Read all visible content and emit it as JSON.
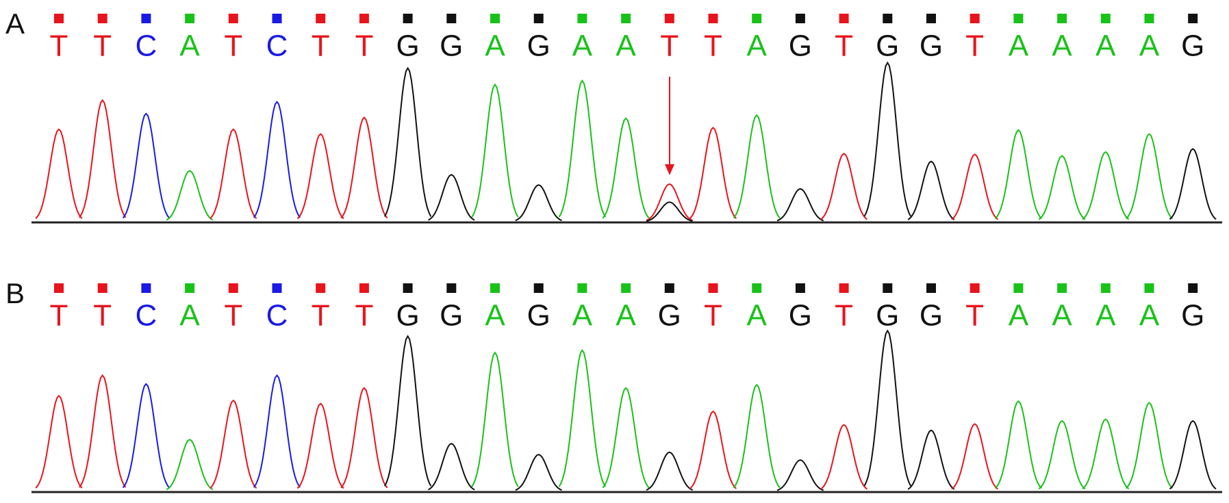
{
  "panels": [
    {
      "label": "A",
      "bases": [
        "T",
        "T",
        "C",
        "A",
        "T",
        "C",
        "T",
        "T",
        "G",
        "G",
        "A",
        "G",
        "A",
        "A",
        "T",
        "T",
        "A",
        "G",
        "T",
        "G",
        "G",
        "T",
        "A",
        "A",
        "A",
        "A",
        "G"
      ],
      "peak_heights": [
        118,
        155,
        138,
        65,
        118,
        153,
        112,
        133,
        196,
        60,
        175,
        47,
        180,
        132,
        48,
        120,
        136,
        42,
        87,
        203,
        77,
        86,
        117,
        84,
        89,
        112,
        93
      ],
      "secondary_peaks": [
        {
          "index": 14,
          "base": "G",
          "height": 25
        }
      ]
    },
    {
      "label": "B",
      "bases": [
        "T",
        "T",
        "C",
        "A",
        "T",
        "C",
        "T",
        "T",
        "G",
        "G",
        "A",
        "G",
        "A",
        "A",
        "G",
        "T",
        "A",
        "G",
        "T",
        "G",
        "G",
        "T",
        "A",
        "A",
        "A",
        "A",
        "G"
      ],
      "peak_heights": [
        122,
        148,
        137,
        66,
        116,
        148,
        112,
        132,
        198,
        61,
        177,
        47,
        180,
        132,
        50,
        102,
        136,
        40,
        85,
        205,
        78,
        86,
        115,
        90,
        92,
        113,
        90
      ],
      "secondary_peaks": []
    }
  ],
  "base_colors": {
    "T": "#e8141c",
    "C": "#1a1ae6",
    "A": "#19c219",
    "G": "#111111"
  }
}
